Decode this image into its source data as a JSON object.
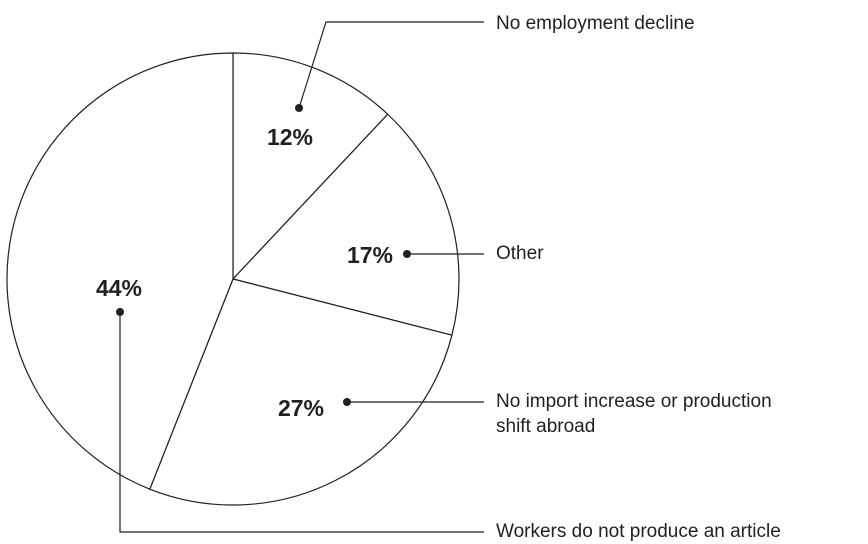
{
  "chart_data": {
    "type": "pie",
    "title": "",
    "slices": [
      {
        "label": "No employment decline",
        "value": 12,
        "value_label": "12%"
      },
      {
        "label": "Other",
        "value": 17,
        "value_label": "17%"
      },
      {
        "label": "No import increase or production shift abroad",
        "label_lines": [
          "No import increase or production",
          "shift abroad"
        ],
        "value": 27,
        "value_label": "27%"
      },
      {
        "label": "Workers do not produce an article",
        "value": 44,
        "value_label": "44%"
      }
    ],
    "start_angle_deg": 0,
    "direction": "clockwise",
    "legend": "callout labels with leader lines",
    "colors": {
      "fill": "#ffffff",
      "stroke": "#231f20"
    }
  }
}
